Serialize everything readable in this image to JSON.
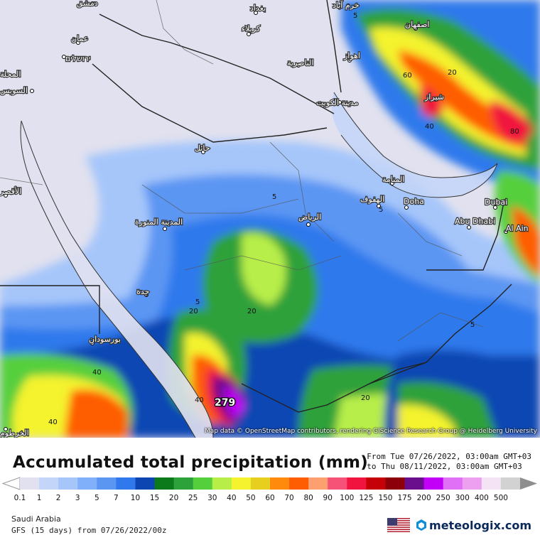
{
  "map": {
    "attribution": "Map data © OpenStreetMap contributors, rendering GIScience Research Group @ Heidelberg University",
    "max_value_label": "279",
    "cities": [
      {
        "name": "دمشق"
      },
      {
        "name": "بغداد"
      },
      {
        "name": "كربلاء"
      },
      {
        "name": "عمان"
      },
      {
        "name": "ירושלים"
      },
      {
        "name": "المحلة"
      },
      {
        "name": "السويس"
      },
      {
        "name": "الناصرية"
      },
      {
        "name": "اصفهان"
      },
      {
        "name": "اهواز"
      },
      {
        "name": "شيراز"
      },
      {
        "name": "مدينة الكويت"
      },
      {
        "name": "حائل"
      },
      {
        "name": "المنامة"
      },
      {
        "name": "الهفوف"
      },
      {
        "name": "Doha"
      },
      {
        "name": "Dubai"
      },
      {
        "name": "Abu Dhabi"
      },
      {
        "name": "Al Ain"
      },
      {
        "name": "الرياض"
      },
      {
        "name": "المدينة المنورة"
      },
      {
        "name": "جدة"
      },
      {
        "name": "بورسودان"
      },
      {
        "name": "خرم آباد"
      },
      {
        "name": "الأقصر"
      },
      {
        "name": "الخرطوم"
      }
    ],
    "contour_labels": [
      "5",
      "5",
      "5",
      "5",
      "5",
      "20",
      "20",
      "20",
      "20",
      "40",
      "40",
      "40",
      "40",
      "60",
      "80"
    ]
  },
  "footer": {
    "title": "Accumulated total precipitation (mm)",
    "period_from": "From Tue 07/26/2022, 03:00am GMT+03",
    "period_to": "to Thu 08/11/2022, 03:00am GMT+03",
    "region": "Saudi Arabia",
    "model": "GFS (15 days) from  07/26/2022/00z",
    "brand": "meteologix.com",
    "flag_icon": "us-flag-icon",
    "logo_icon": "meteologix-logo-icon"
  },
  "scale": {
    "labels": [
      "0.1",
      "1",
      "2",
      "3",
      "5",
      "7",
      "10",
      "15",
      "20",
      "25",
      "30",
      "40",
      "50",
      "60",
      "70",
      "80",
      "90",
      "100",
      "125",
      "150",
      "175",
      "200",
      "250",
      "300",
      "400",
      "500"
    ],
    "colors": [
      "#e1e1ef",
      "#c3d5f8",
      "#a6c6fa",
      "#7fb0f9",
      "#5c96f3",
      "#2f79ec",
      "#0d46b3",
      "#0c7a1b",
      "#2da13a",
      "#56cf3c",
      "#b7ee48",
      "#f4f32d",
      "#e6cf1e",
      "#ff8a0b",
      "#fe5d04",
      "#fca070",
      "#f65176",
      "#f1143e",
      "#c50006",
      "#8b0009",
      "#6a0e8e",
      "#c200f8",
      "#e071f6",
      "#eea0f0",
      "#f4e3f4",
      "#d2d2d2"
    ]
  }
}
